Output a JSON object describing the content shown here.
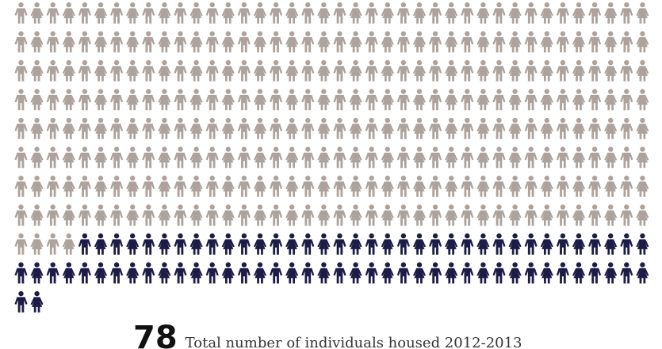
{
  "chart_data": {
    "type": "pictogram",
    "grid": {
      "columns": 40,
      "rows": 11
    },
    "total_icons": 402,
    "highlighted_icons": 78,
    "fill_order": "left-to-right, top-to-bottom; highlighted icons are the last ones",
    "series": [
      {
        "count": 324,
        "color": "#ada39c"
      },
      {
        "count": 78,
        "color": "#1d1c47"
      }
    ]
  },
  "caption": {
    "number": "78",
    "text": "Total number of individuals housed 2012-2013"
  },
  "colors": {
    "base": "#ada39c",
    "highlight": "#1d1c47"
  }
}
